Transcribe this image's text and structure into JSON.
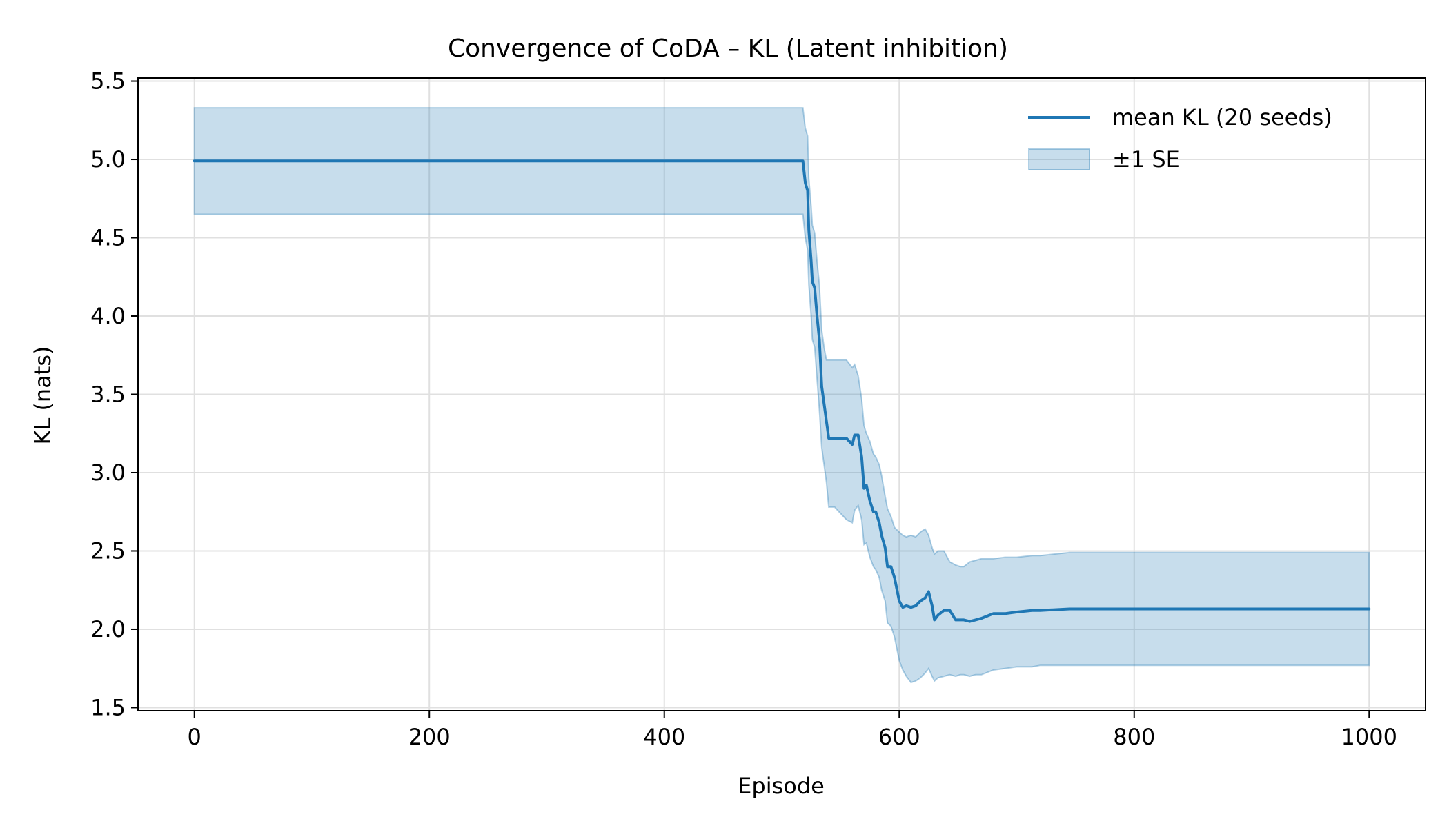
{
  "chart_data": {
    "type": "line",
    "title": "Convergence of CoDA – KL (Latent inhibition)",
    "xlabel": "Episode",
    "ylabel": "KL (nats)",
    "xlim": [
      -48,
      1048
    ],
    "ylim": [
      1.48,
      5.52
    ],
    "xticks": [
      0,
      200,
      400,
      600,
      800,
      1000
    ],
    "xtick_labels": [
      "0",
      "200",
      "400",
      "600",
      "800",
      "1000"
    ],
    "yticks": [
      1.5,
      2.0,
      2.5,
      3.0,
      3.5,
      4.0,
      4.5,
      5.0,
      5.5
    ],
    "ytick_labels": [
      "1.5",
      "2.0",
      "2.5",
      "3.0",
      "3.5",
      "4.0",
      "4.5",
      "5.0",
      "5.5"
    ],
    "grid": true,
    "legend_position": "upper right",
    "colors": {
      "line": "#1f77b4",
      "band_fill": "#1f77b4",
      "band_edge": "#1f77b4",
      "grid": "#e0e0e0",
      "axes": "#000000"
    },
    "series": [
      {
        "name": "mean KL (20 seeds)",
        "kind": "line",
        "x": [
          0,
          518,
          520,
          522,
          523,
          525,
          526,
          528,
          530,
          532,
          534,
          536,
          538,
          540,
          545,
          555,
          560,
          562,
          565,
          568,
          570,
          572,
          575,
          578,
          580,
          583,
          585,
          588,
          590,
          593,
          596,
          600,
          603,
          606,
          610,
          614,
          618,
          622,
          625,
          628,
          630,
          633,
          638,
          643,
          648,
          652,
          655,
          660,
          665,
          670,
          680,
          690,
          700,
          713,
          720,
          745,
          800,
          900,
          1000
        ],
        "y": [
          4.99,
          4.99,
          4.85,
          4.8,
          4.55,
          4.35,
          4.22,
          4.18,
          4.0,
          3.85,
          3.55,
          3.44,
          3.33,
          3.22,
          3.22,
          3.22,
          3.18,
          3.24,
          3.24,
          3.1,
          2.9,
          2.92,
          2.82,
          2.75,
          2.75,
          2.68,
          2.6,
          2.52,
          2.4,
          2.4,
          2.33,
          2.18,
          2.14,
          2.15,
          2.14,
          2.15,
          2.18,
          2.2,
          2.24,
          2.15,
          2.06,
          2.09,
          2.12,
          2.12,
          2.06,
          2.06,
          2.06,
          2.05,
          2.06,
          2.07,
          2.1,
          2.1,
          2.11,
          2.12,
          2.12,
          2.13,
          2.13,
          2.13,
          2.13
        ]
      },
      {
        "name": "±1 SE",
        "kind": "band",
        "x": [
          0,
          518,
          520,
          522,
          523,
          525,
          526,
          528,
          530,
          532,
          534,
          536,
          538,
          540,
          545,
          555,
          560,
          562,
          565,
          568,
          570,
          572,
          575,
          578,
          580,
          583,
          585,
          588,
          590,
          593,
          596,
          600,
          603,
          606,
          610,
          614,
          618,
          622,
          625,
          628,
          630,
          633,
          638,
          643,
          648,
          652,
          655,
          660,
          665,
          670,
          680,
          690,
          700,
          713,
          720,
          745,
          800,
          900,
          1000
        ],
        "upper": [
          5.33,
          5.33,
          5.2,
          5.15,
          4.88,
          4.7,
          4.58,
          4.53,
          4.35,
          4.2,
          3.91,
          3.8,
          3.72,
          3.72,
          3.72,
          3.72,
          3.67,
          3.69,
          3.62,
          3.47,
          3.3,
          3.25,
          3.2,
          3.12,
          3.1,
          3.05,
          2.98,
          2.85,
          2.77,
          2.72,
          2.65,
          2.62,
          2.6,
          2.59,
          2.6,
          2.59,
          2.62,
          2.64,
          2.6,
          2.52,
          2.48,
          2.5,
          2.5,
          2.43,
          2.41,
          2.4,
          2.4,
          2.43,
          2.44,
          2.45,
          2.45,
          2.46,
          2.46,
          2.47,
          2.47,
          2.49,
          2.49,
          2.49,
          2.49
        ],
        "lower": [
          4.65,
          4.65,
          4.5,
          4.42,
          4.2,
          4.0,
          3.85,
          3.8,
          3.6,
          3.4,
          3.16,
          3.05,
          2.94,
          2.78,
          2.78,
          2.7,
          2.68,
          2.76,
          2.79,
          2.7,
          2.54,
          2.55,
          2.46,
          2.4,
          2.38,
          2.33,
          2.25,
          2.18,
          2.04,
          2.02,
          1.95,
          1.8,
          1.74,
          1.7,
          1.66,
          1.67,
          1.69,
          1.72,
          1.75,
          1.7,
          1.67,
          1.69,
          1.7,
          1.71,
          1.7,
          1.71,
          1.71,
          1.7,
          1.71,
          1.71,
          1.74,
          1.75,
          1.76,
          1.76,
          1.77,
          1.77,
          1.77,
          1.77,
          1.77
        ]
      }
    ]
  }
}
